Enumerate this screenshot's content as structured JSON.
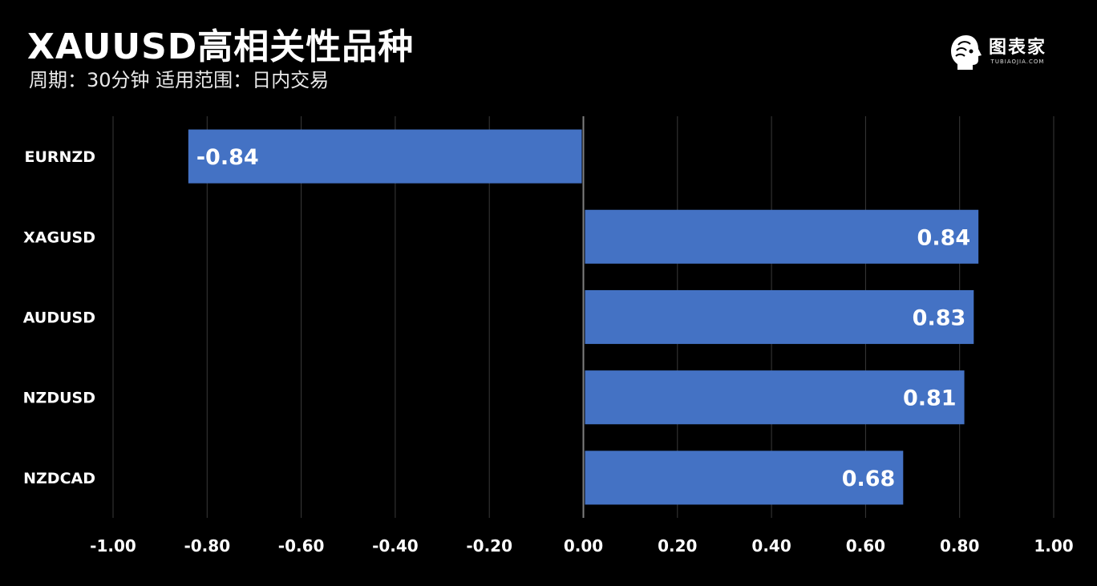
{
  "header": {
    "title": "XAUUSD高相关性品种",
    "subtitle": "周期：30分钟  适用范围：日内交易"
  },
  "logo": {
    "text": "图表家",
    "subtext": "TUBIAOJIA.COM",
    "icon": "head-profile-icon"
  },
  "colors": {
    "background": "#000000",
    "bar": "#4472c4",
    "grid": "#3a3a3a",
    "zero_line": "#7f7f7f",
    "text": "#ffffff"
  },
  "chart_data": {
    "type": "bar",
    "orientation": "horizontal",
    "categories": [
      "EURNZD",
      "XAGUSD",
      "AUDUSD",
      "NZDUSD",
      "NZDCAD"
    ],
    "values": [
      -0.84,
      0.84,
      0.83,
      0.81,
      0.68
    ],
    "value_labels": [
      "-0.84",
      "0.84",
      "0.83",
      "0.81",
      "0.68"
    ],
    "xlim": [
      -1.0,
      1.0
    ],
    "xticks": [
      -1.0,
      -0.8,
      -0.6,
      -0.4,
      -0.2,
      0.0,
      0.2,
      0.4,
      0.6,
      0.8,
      1.0
    ],
    "xtick_labels": [
      "-1.00",
      "-0.80",
      "-0.60",
      "-0.40",
      "-0.20",
      "0.00",
      "0.20",
      "0.40",
      "0.60",
      "0.80",
      "1.00"
    ],
    "grid": true,
    "legend": "none"
  }
}
